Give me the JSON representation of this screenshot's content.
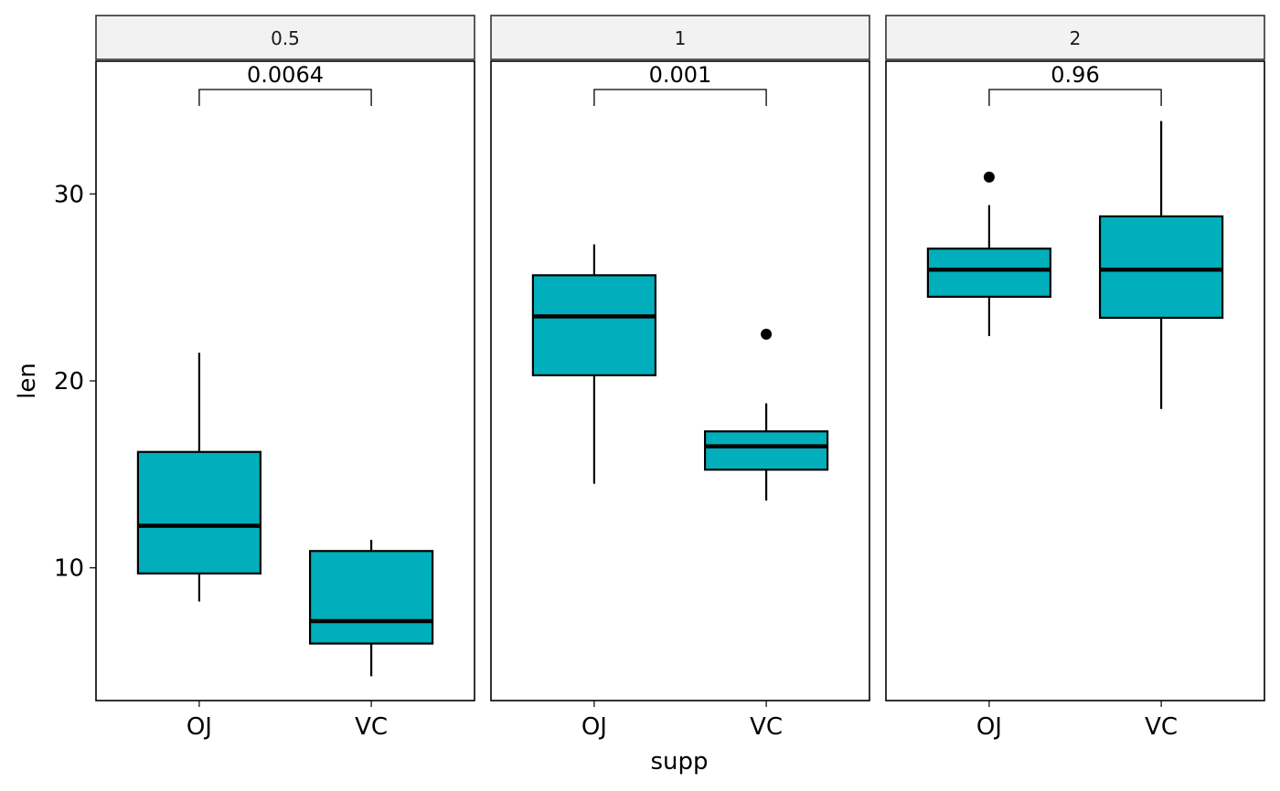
{
  "chart_data": {
    "type": "boxplot",
    "facet_var": "dose",
    "xlabel": "supp",
    "ylabel": "len",
    "categories": [
      "OJ",
      "VC"
    ],
    "y_ticks": [
      10,
      20,
      30
    ],
    "ylim": [
      2.9,
      37.1
    ],
    "box_fill": "#00AFBB",
    "grid": false,
    "panels": [
      {
        "label": "0.5",
        "p_value": "0.0064",
        "boxes": [
          {
            "group": "OJ",
            "min": 8.2,
            "q1": 9.7,
            "median": 12.25,
            "q3": 16.2,
            "max": 21.5,
            "outliers": []
          },
          {
            "group": "VC",
            "min": 4.2,
            "q1": 5.95,
            "median": 7.15,
            "q3": 10.9,
            "max": 11.5,
            "outliers": []
          }
        ]
      },
      {
        "label": "1",
        "p_value": "0.001",
        "boxes": [
          {
            "group": "OJ",
            "min": 14.5,
            "q1": 20.3,
            "median": 23.45,
            "q3": 25.65,
            "max": 27.3,
            "outliers": []
          },
          {
            "group": "VC",
            "min": 13.6,
            "q1": 15.25,
            "median": 16.5,
            "q3": 17.3,
            "max": 18.8,
            "outliers": [
              22.5
            ]
          }
        ]
      },
      {
        "label": "2",
        "p_value": "0.96",
        "boxes": [
          {
            "group": "OJ",
            "min": 22.4,
            "q1": 24.5,
            "median": 25.95,
            "q3": 27.075,
            "max": 29.4,
            "outliers": [
              30.9
            ]
          },
          {
            "group": "VC",
            "min": 18.5,
            "q1": 23.375,
            "median": 25.95,
            "q3": 28.8,
            "max": 33.9,
            "outliers": []
          }
        ]
      }
    ]
  }
}
